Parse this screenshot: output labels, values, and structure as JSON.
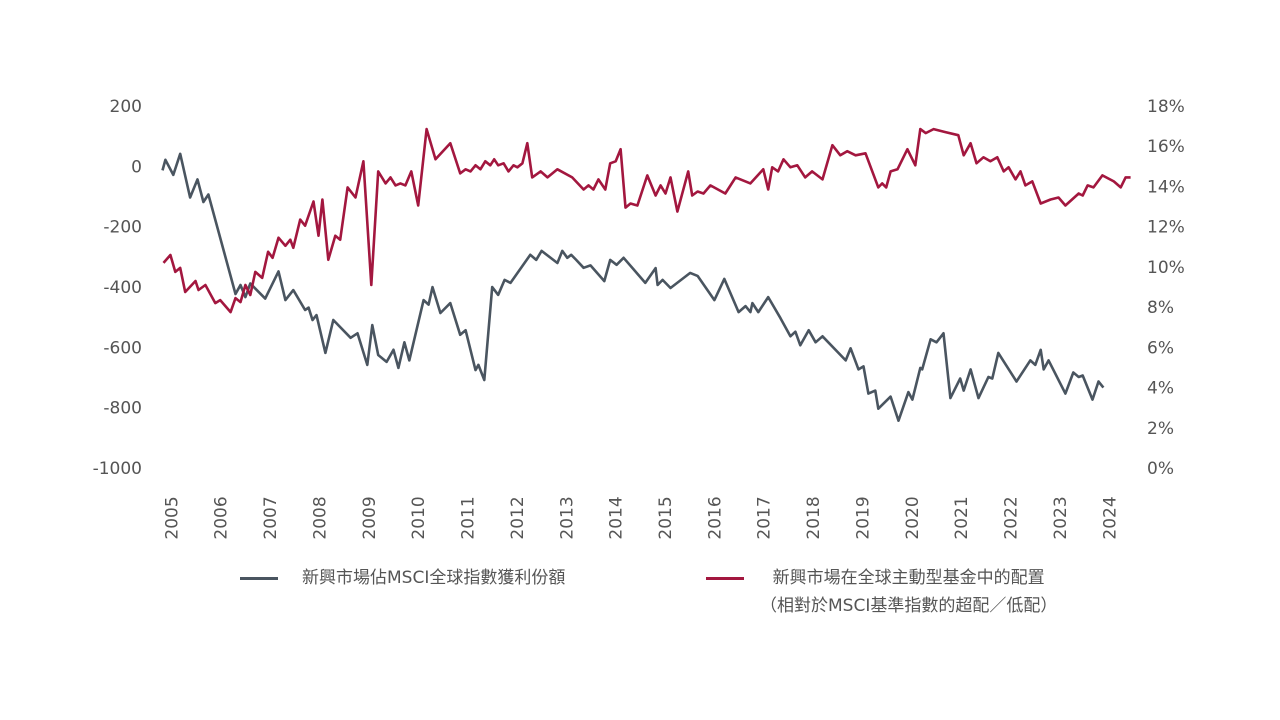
{
  "chart_data": {
    "type": "line",
    "xlim": [
      2004.75,
      2024.5
    ],
    "xticks": [
      2005,
      2006,
      2007,
      2008,
      2009,
      2010,
      2011,
      2012,
      2013,
      2014,
      2015,
      2016,
      2017,
      2018,
      2019,
      2020,
      2021,
      2022,
      2023,
      2024
    ],
    "ylim": [
      -1000,
      200
    ],
    "yticks": [
      -1000,
      -800,
      -600,
      -400,
      -200,
      0,
      200
    ],
    "y2lim": [
      0,
      18
    ],
    "y2ticks": [
      {
        "value": 0,
        "label": "0%"
      },
      {
        "value": 2,
        "label": "2%"
      },
      {
        "value": 4,
        "label": "4%"
      },
      {
        "value": 6,
        "label": "6%"
      },
      {
        "value": 8,
        "label": "8%"
      },
      {
        "value": 10,
        "label": "10%"
      },
      {
        "value": 12,
        "label": "12%"
      },
      {
        "value": 14,
        "label": "14%"
      },
      {
        "value": 16,
        "label": "16%"
      },
      {
        "value": 18,
        "label": "18%"
      }
    ],
    "grid": false,
    "series": [
      {
        "name": "新興市場佔MSCI全球指數獲利份額",
        "color": "#4a5560",
        "axis": "y",
        "x": [
          2004.8,
          2004.86,
          2005.02,
          2005.16,
          2005.36,
          2005.51,
          2005.63,
          2005.73,
          2006.28,
          2006.38,
          2006.48,
          2006.58,
          2006.88,
          2007.15,
          2007.29,
          2007.45,
          2007.69,
          2007.76,
          2007.84,
          2007.92,
          2008.1,
          2008.26,
          2008.61,
          2008.75,
          2008.95,
          2009.05,
          2009.17,
          2009.34,
          2009.48,
          2009.58,
          2009.7,
          2009.8,
          2010.09,
          2010.19,
          2010.27,
          2010.43,
          2010.63,
          2010.83,
          2010.94,
          2011.14,
          2011.2,
          2011.32,
          2011.48,
          2011.6,
          2011.73,
          2011.85,
          2012.25,
          2012.37,
          2012.48,
          2012.8,
          2012.9,
          2013.0,
          2013.08,
          2013.18,
          2013.33,
          2013.47,
          2013.75,
          2013.87,
          2014.0,
          2014.14,
          2014.58,
          2014.79,
          2014.83,
          2014.93,
          2015.09,
          2015.49,
          2015.64,
          2015.98,
          2016.18,
          2016.47,
          2016.61,
          2016.71,
          2016.75,
          2016.87,
          2017.07,
          2017.32,
          2017.52,
          2017.62,
          2017.72,
          2017.89,
          2018.03,
          2018.17,
          2018.64,
          2018.74,
          2018.9,
          2019.0,
          2019.1,
          2019.24,
          2019.3,
          2019.55,
          2019.71,
          2019.91,
          2019.99,
          2020.15,
          2020.19,
          2020.36,
          2020.48,
          2020.62,
          2020.76,
          2020.96,
          2021.03,
          2021.17,
          2021.33,
          2021.53,
          2021.61,
          2021.73,
          2022.1,
          2022.38,
          2022.48,
          2022.59,
          2022.65,
          2022.75,
          2023.09,
          2023.25,
          2023.36,
          2023.44,
          2023.64,
          2023.76,
          2023.86
        ],
        "values": [
          -10,
          25,
          -25,
          45,
          -100,
          -40,
          -115,
          -90,
          -420,
          -390,
          -430,
          -385,
          -435,
          -345,
          -440,
          -407,
          -473,
          -465,
          -506,
          -490,
          -615,
          -506,
          -565,
          -550,
          -655,
          -523,
          -622,
          -645,
          -605,
          -665,
          -580,
          -640,
          -440,
          -455,
          -397,
          -483,
          -450,
          -555,
          -540,
          -672,
          -655,
          -705,
          -397,
          -423,
          -373,
          -383,
          -290,
          -307,
          -277,
          -317,
          -277,
          -300,
          -290,
          -307,
          -333,
          -325,
          -377,
          -307,
          -323,
          -300,
          -383,
          -334,
          -390,
          -373,
          -400,
          -350,
          -360,
          -440,
          -370,
          -480,
          -460,
          -480,
          -450,
          -480,
          -430,
          -500,
          -560,
          -545,
          -590,
          -540,
          -580,
          -560,
          -640,
          -600,
          -670,
          -660,
          -750,
          -740,
          -800,
          -760,
          -840,
          -745,
          -770,
          -665,
          -670,
          -570,
          -580,
          -550,
          -765,
          -700,
          -740,
          -670,
          -765,
          -695,
          -700,
          -615,
          -710,
          -640,
          -655,
          -605,
          -670,
          -640,
          -750,
          -680,
          -695,
          -690,
          -770,
          -710,
          -730
        ]
      },
      {
        "name": "新興市場在全球主動型基金中的配置\n（相對於MSCI基準指數的超配／低配）",
        "color": "#a3173f",
        "axis": "y2",
        "x": [
          2004.82,
          2004.96,
          2005.06,
          2005.16,
          2005.26,
          2005.47,
          2005.53,
          2005.67,
          2005.87,
          2005.97,
          2006.18,
          2006.28,
          2006.38,
          2006.48,
          2006.58,
          2006.68,
          2006.82,
          2006.94,
          2007.03,
          2007.15,
          2007.29,
          2007.39,
          2007.45,
          2007.59,
          2007.69,
          2007.86,
          2007.96,
          2008.04,
          2008.16,
          2008.3,
          2008.4,
          2008.55,
          2008.71,
          2008.87,
          2009.03,
          2009.17,
          2009.32,
          2009.42,
          2009.52,
          2009.62,
          2009.72,
          2009.84,
          2009.98,
          2010.15,
          2010.33,
          2010.63,
          2010.83,
          2010.94,
          2011.04,
          2011.14,
          2011.24,
          2011.34,
          2011.44,
          2011.52,
          2011.6,
          2011.71,
          2011.81,
          2011.91,
          2011.99,
          2012.09,
          2012.19,
          2012.29,
          2012.46,
          2012.6,
          2012.8,
          2013.1,
          2013.33,
          2013.43,
          2013.53,
          2013.63,
          2013.77,
          2013.87,
          2013.98,
          2014.08,
          2014.18,
          2014.28,
          2014.42,
          2014.62,
          2014.79,
          2014.89,
          2014.99,
          2015.09,
          2015.23,
          2015.45,
          2015.53,
          2015.64,
          2015.76,
          2015.9,
          2016.2,
          2016.41,
          2016.71,
          2016.97,
          2017.07,
          2017.15,
          2017.27,
          2017.38,
          2017.52,
          2017.66,
          2017.82,
          2017.96,
          2018.17,
          2018.37,
          2018.53,
          2018.67,
          2018.84,
          2019.04,
          2019.3,
          2019.38,
          2019.46,
          2019.55,
          2019.69,
          2019.89,
          2020.05,
          2020.15,
          2020.26,
          2020.42,
          2020.66,
          2020.92,
          2021.03,
          2021.17,
          2021.29,
          2021.43,
          2021.57,
          2021.71,
          2021.84,
          2021.94,
          2022.08,
          2022.18,
          2022.28,
          2022.42,
          2022.59,
          2022.79,
          2022.95,
          2023.09,
          2023.36,
          2023.44,
          2023.54,
          2023.66,
          2023.84,
          2024.07,
          2024.21,
          2024.31,
          2024.41
        ],
        "values": [
          10.25,
          10.64,
          9.8,
          10.0,
          8.8,
          9.35,
          8.9,
          9.15,
          8.25,
          8.4,
          7.8,
          8.5,
          8.3,
          9.15,
          8.65,
          9.8,
          9.5,
          10.8,
          10.5,
          11.5,
          11.1,
          11.4,
          11.0,
          12.4,
          12.1,
          13.3,
          11.6,
          13.4,
          10.4,
          11.6,
          11.4,
          14.0,
          13.5,
          15.3,
          9.15,
          14.8,
          14.2,
          14.5,
          14.1,
          14.2,
          14.1,
          14.8,
          13.1,
          16.9,
          15.4,
          16.2,
          14.7,
          14.9,
          14.8,
          15.1,
          14.9,
          15.3,
          15.1,
          15.4,
          15.1,
          15.2,
          14.8,
          15.1,
          15.0,
          15.2,
          16.2,
          14.5,
          14.8,
          14.5,
          14.9,
          14.5,
          13.9,
          14.1,
          13.9,
          14.4,
          13.9,
          15.2,
          15.3,
          15.9,
          13.0,
          13.2,
          13.1,
          14.6,
          13.6,
          14.1,
          13.7,
          14.5,
          12.8,
          14.8,
          13.6,
          13.8,
          13.7,
          14.1,
          13.7,
          14.5,
          14.2,
          14.9,
          13.9,
          15.0,
          14.8,
          15.4,
          15.0,
          15.1,
          14.5,
          14.8,
          14.4,
          16.1,
          15.6,
          15.8,
          15.6,
          15.7,
          14.0,
          14.2,
          14.0,
          14.8,
          14.9,
          15.9,
          15.1,
          16.9,
          16.7,
          16.9,
          16.75,
          16.6,
          15.6,
          16.2,
          15.2,
          15.5,
          15.3,
          15.5,
          14.8,
          15.0,
          14.4,
          14.8,
          14.1,
          14.3,
          13.2,
          13.4,
          13.5,
          13.1,
          13.7,
          13.6,
          14.1,
          14.0,
          14.6,
          14.3,
          14.0,
          14.5,
          14.5
        ]
      }
    ]
  }
}
